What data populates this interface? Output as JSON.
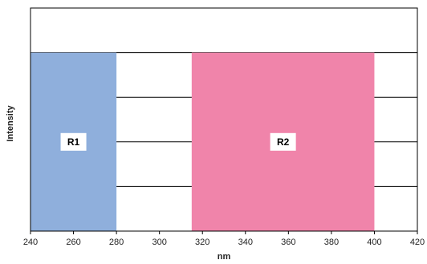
{
  "chart_data": {
    "type": "bar",
    "title": "",
    "xlabel": "nm",
    "ylabel": "Intensity",
    "xlim": [
      240,
      420
    ],
    "ylim": [
      0,
      5
    ],
    "x_ticks": [
      240,
      260,
      280,
      300,
      320,
      340,
      360,
      380,
      400,
      420
    ],
    "y_gridlines": [
      1,
      2,
      3,
      4
    ],
    "grid": "horizontal",
    "regions": [
      {
        "label": "R1",
        "x_start": 240,
        "x_end": 280,
        "value": 4,
        "color": "#8fafdc"
      },
      {
        "label": "R2",
        "x_start": 315,
        "x_end": 400,
        "value": 4,
        "color": "#f084aa"
      }
    ]
  }
}
